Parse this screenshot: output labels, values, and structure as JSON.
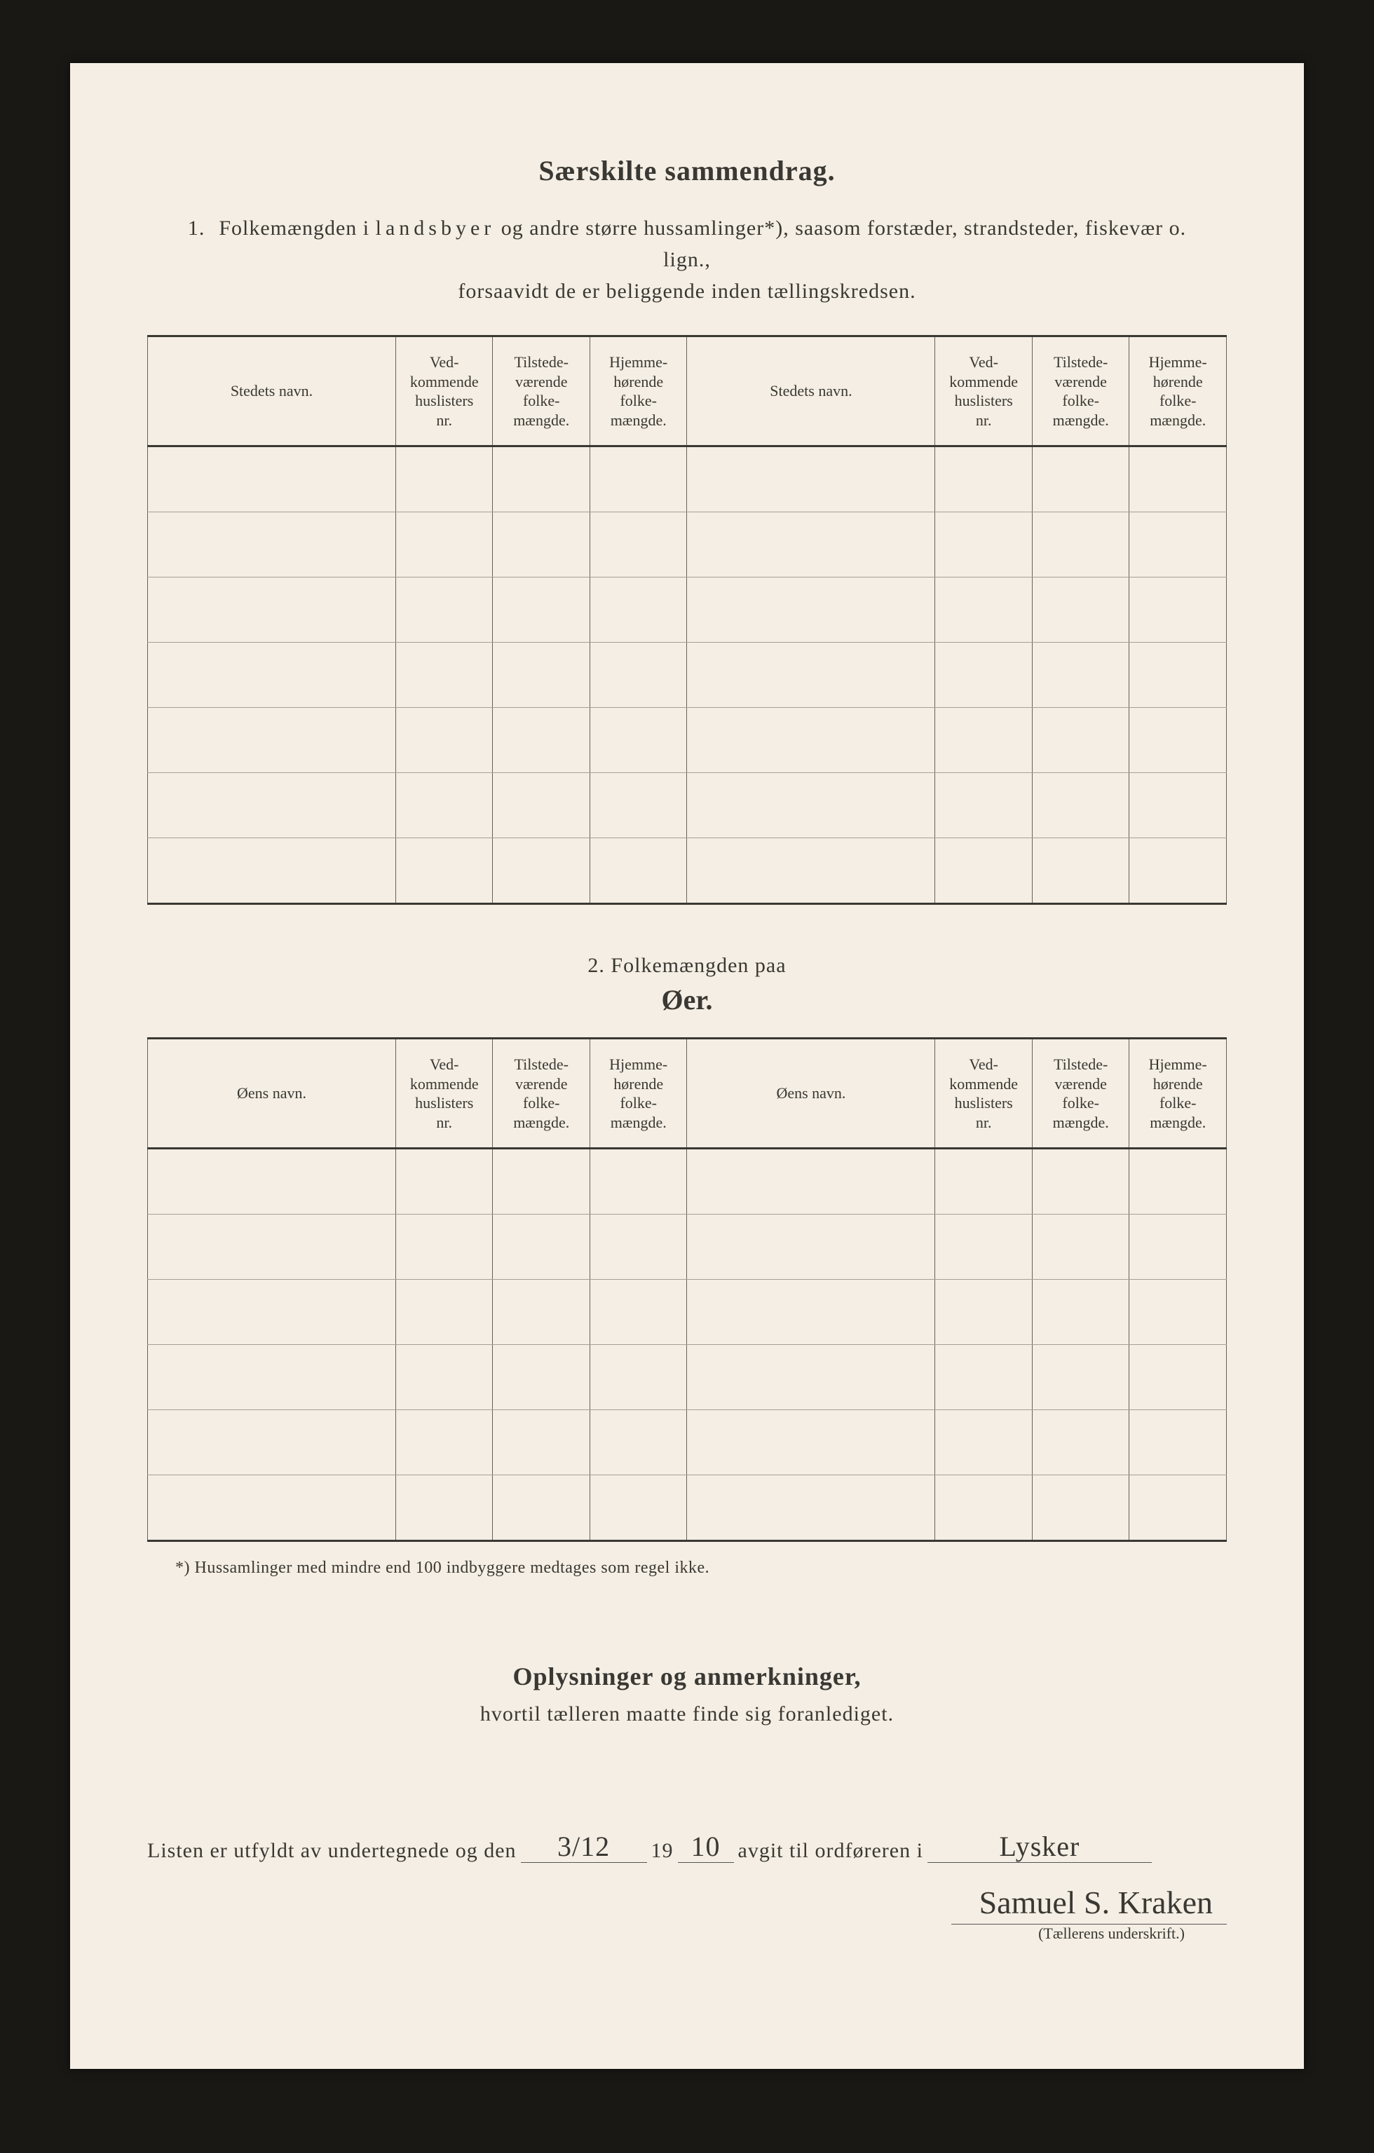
{
  "title": "Særskilte sammendrag.",
  "section1": {
    "number": "1.",
    "intro_line1_a": "Folkemængden i ",
    "intro_spaced": "landsbyer",
    "intro_line1_b": " og andre større hussamlinger*), saasom forstæder, strandsteder, fiskevær o. lign.,",
    "intro_line2": "forsaavidt de er beliggende inden tællingskredsen.",
    "headers": {
      "name": "Stedets navn.",
      "col2": "Ved-\nkommende\nhuslisters\nnr.",
      "col3": "Tilstede-\nværende\nfolke-\nmængde.",
      "col4": "Hjemme-\nhørende\nfolke-\nmængde."
    },
    "row_count": 7
  },
  "section2": {
    "title_prefix": "2.   Folkemængden paa",
    "title_main": "Øer.",
    "headers": {
      "name": "Øens navn.",
      "col2": "Ved-\nkommende\nhuslisters\nnr.",
      "col3": "Tilstede-\nværende\nfolke-\nmængde.",
      "col4": "Hjemme-\nhørende\nfolke-\nmængde."
    },
    "row_count": 6
  },
  "footnote": "*) Hussamlinger med mindre end 100 indbyggere medtages som regel ikke.",
  "remarks": {
    "title": "Oplysninger og anmerkninger,",
    "sub": "hvortil tælleren maatte finde sig foranlediget."
  },
  "signature": {
    "text_a": "Listen er utfyldt av undertegnede og den",
    "date": "3/12",
    "year_prefix": "19",
    "year_fill": "10",
    "text_b": "avgit til ordføreren i",
    "place": "Lysker",
    "name": "Samuel S. Kraken",
    "caption": "(Tællerens underskrift.)"
  }
}
